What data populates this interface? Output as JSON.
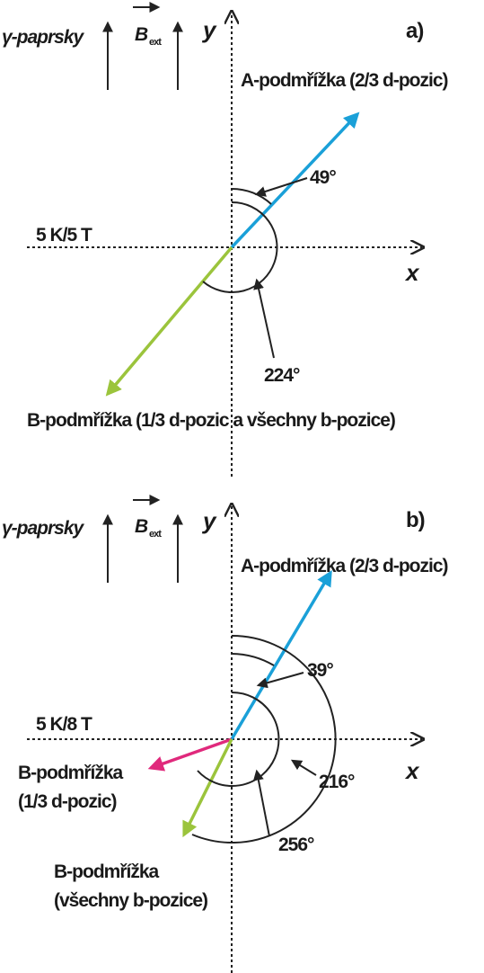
{
  "panels": [
    {
      "label": "a)",
      "beam": "γ-paprsky",
      "field": "B",
      "field_sub": "ext",
      "y_axis": "y",
      "x_axis": "x",
      "condition": "5 K/5 T",
      "a_sublattice": "A-podmřížka (2/3 d-pozic)",
      "b_sublattice": [
        "B-podmřížka (1/3 d-pozic a všechny b-pozice)"
      ],
      "angles": [
        "49°",
        "224°"
      ]
    },
    {
      "label": "b)",
      "beam": "γ-paprsky",
      "field": "B",
      "field_sub": "ext",
      "y_axis": "y",
      "x_axis": "x",
      "condition": "5 K/8 T",
      "a_sublattice": "A-podmřížka (2/3 d-pozic)",
      "b_sublattice": [
        "B-podmřížka",
        "(1/3 d-pozic)",
        "B-podmřížka",
        "(všechny b-pozice)"
      ],
      "angles": [
        "39°",
        "216°",
        "256°"
      ]
    }
  ]
}
